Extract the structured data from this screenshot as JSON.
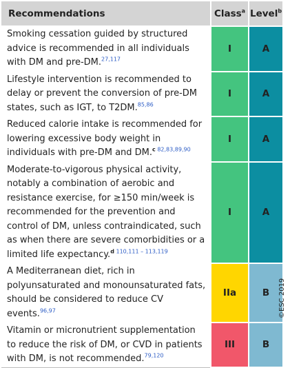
{
  "header": {
    "recommendations": "Recommendations",
    "class": "Class",
    "class_note": "a",
    "level": "Level",
    "level_note": "b"
  },
  "rows": [
    {
      "text": "Smoking cessation guided by structured advice is recommended in all individuals with DM and pre-DM.",
      "refs": "27,117",
      "class": "I",
      "level": "A"
    },
    {
      "text": "Lifestyle intervention is recommended to delay or prevent the conversion of pre-DM states, such as IGT, to T2DM.",
      "refs": "85,86",
      "class": "I",
      "level": "A"
    },
    {
      "text": "Reduced calorie intake is recommended for lowering excessive body weight in individuals with pre-DM and DM.",
      "note": "c",
      "refs": "82,83,89,90",
      "class": "I",
      "level": "A"
    },
    {
      "text": "Moderate-to-vigorous physical activity, notably a combination of aerobic and resistance exercise, for ≥150 min/week is recommended for the prevention and control of DM, unless contraindicated, such as when there are severe comorbidities or a limited life expectancy.",
      "note": "d",
      "refs": "110,111 – 113,119",
      "class": "I",
      "level": "A"
    },
    {
      "text": "A Mediterranean diet, rich in polyunsaturated and monounsaturated fats, should be considered to reduce CV events.",
      "refs": "96,97",
      "class": "IIa",
      "level": "B"
    },
    {
      "text": "Vitamin or micronutrient supplementation to reduce the risk of DM, or CVD in patients with DM, is not recommended.",
      "refs": "79,120",
      "class": "III",
      "level": "B"
    }
  ],
  "copyright": "©ESC 2019"
}
